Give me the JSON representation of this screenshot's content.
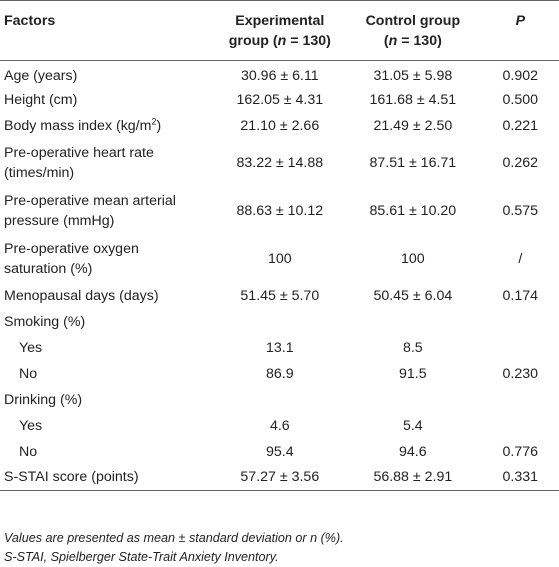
{
  "header": {
    "factors": "Factors",
    "experimental_line1": "Experimental",
    "experimental_line2_pre": "group (",
    "n": "n",
    "experimental_line2_post": " = 130)",
    "control_line1": "Control group",
    "control_line2_pre": "(",
    "control_line2_post": " = 130)",
    "p": "P"
  },
  "rows": [
    {
      "factor": "Age (years)",
      "experimental": "30.96 ± 6.11",
      "control": "31.05 ± 5.98",
      "p": "0.902"
    },
    {
      "factor": "Height (cm)",
      "experimental": "162.05 ± 4.31",
      "control": "161.68 ± 4.51",
      "p": "0.500"
    },
    {
      "factor": "Body mass index (kg/m",
      "factor_sup": "2",
      "factor_post": ")",
      "experimental": "21.10 ± 2.66",
      "control": "21.49 ± 2.50",
      "p": "0.221"
    },
    {
      "factor_line1": "Pre-operative heart rate",
      "factor_line2": "(times/min)",
      "experimental": "83.22 ± 14.88",
      "control": "87.51 ± 16.71",
      "p": "0.262"
    },
    {
      "factor_line1": "Pre-operative mean arterial",
      "factor_line2": "pressure (mmHg)",
      "experimental": "88.63 ± 10.12",
      "control": "85.61 ± 10.20",
      "p": "0.575"
    },
    {
      "factor_line1": "Pre-operative oxygen",
      "factor_line2": "saturation (%)",
      "experimental": "100",
      "control": "100",
      "p": "/"
    },
    {
      "factor": "Menopausal days (days)",
      "experimental": "51.45 ± 5.70",
      "control": "50.45 ± 6.04",
      "p": "0.174"
    },
    {
      "factor": "Smoking (%)",
      "experimental": "",
      "control": "",
      "p": ""
    },
    {
      "factor": "Yes",
      "experimental": "13.1",
      "control": "8.5",
      "p": ""
    },
    {
      "factor": "No",
      "experimental": "86.9",
      "control": "91.5",
      "p": "0.230"
    },
    {
      "factor": "Drinking (%)",
      "experimental": "",
      "control": "",
      "p": ""
    },
    {
      "factor": "Yes",
      "experimental": "4.6",
      "control": "5.4",
      "p": ""
    },
    {
      "factor": "No",
      "experimental": "95.4",
      "control": "94.6",
      "p": "0.776"
    },
    {
      "factor": "S-STAI score (points)",
      "experimental": "57.27 ± 3.56",
      "control": "56.88 ± 2.91",
      "p": "0.331"
    }
  ],
  "footnotes": {
    "line1": "Values are presented as mean ± standard deviation or n (%).",
    "line2": "S-STAI, Spielberger State-Trait Anxiety Inventory."
  },
  "colors": {
    "text": "#222222",
    "rule": "#666666",
    "background": "#ffffff"
  }
}
